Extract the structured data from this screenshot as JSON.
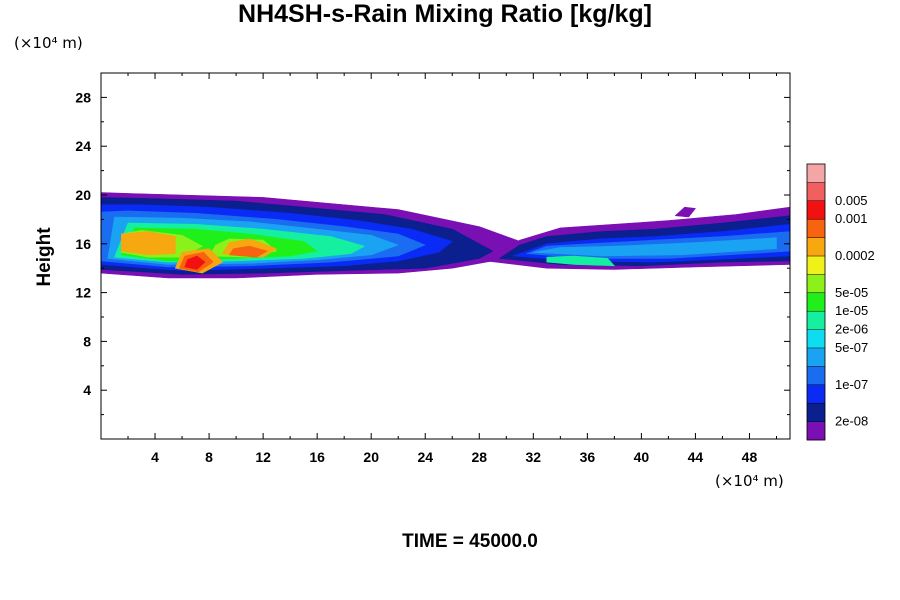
{
  "chart_data": {
    "type": "heatmap",
    "title": "NH4SH-s-Rain Mixing Ratio [kg/kg]",
    "xlabel": "",
    "ylabel": "Height",
    "x_unit_label": "(×10⁴ m)",
    "y_unit_label": "(×10⁴ m)",
    "footer": "TIME = 45000.0",
    "xlim": [
      0,
      51
    ],
    "ylim": [
      0,
      30
    ],
    "xticks": [
      4,
      8,
      12,
      16,
      20,
      24,
      28,
      32,
      36,
      40,
      44,
      48
    ],
    "yticks": [
      4,
      8,
      12,
      16,
      20,
      24,
      28
    ],
    "xtick_labels": [
      "4",
      "8",
      "12",
      "16",
      "20",
      "24",
      "28",
      "32",
      "36",
      "40",
      "44",
      "48"
    ],
    "ytick_labels": [
      "4",
      "8",
      "12",
      "16",
      "20",
      "24",
      "28"
    ],
    "colorbar": {
      "colors": [
        "#7a0fb4",
        "#0b1f8f",
        "#0a2bf5",
        "#1a6cf0",
        "#1aa3f2",
        "#0fdcf0",
        "#15f0a0",
        "#1ff01a",
        "#8cf01a",
        "#f0f01a",
        "#f7a70f",
        "#f7630f",
        "#f31010",
        "#f06060",
        "#f4a6a6"
      ],
      "labels": [
        "2e-08",
        "1e-07",
        "5e-07",
        "2e-06",
        "1e-05",
        "5e-05",
        "0.0002",
        "0.001",
        "0.005"
      ],
      "label_slots": [
        1,
        3,
        5,
        6,
        7,
        8,
        10,
        12,
        13
      ]
    },
    "regions": [
      {
        "level": 0,
        "pts": [
          [
            0,
            13.6
          ],
          [
            5,
            13.2
          ],
          [
            10,
            13.2
          ],
          [
            16,
            13.5
          ],
          [
            22,
            13.6
          ],
          [
            26,
            14.0
          ],
          [
            29,
            14.6
          ],
          [
            30.5,
            15.4
          ],
          [
            32,
            15.8
          ],
          [
            28,
            17.4
          ],
          [
            22,
            18.8
          ],
          [
            17,
            19.3
          ],
          [
            12,
            19.8
          ],
          [
            6,
            20.0
          ],
          [
            0,
            20.2
          ]
        ]
      },
      {
        "level": 0,
        "pts": [
          [
            28.5,
            14.6
          ],
          [
            33,
            14.0
          ],
          [
            38,
            13.9
          ],
          [
            44,
            14.1
          ],
          [
            51,
            14.3
          ],
          [
            51,
            19.0
          ],
          [
            47,
            18.4
          ],
          [
            42,
            17.9
          ],
          [
            38,
            17.6
          ],
          [
            34,
            17.3
          ],
          [
            31,
            16.3
          ]
        ]
      },
      {
        "level": 0,
        "pts": [
          [
            42.5,
            18.3
          ],
          [
            43.5,
            18.2
          ],
          [
            44,
            18.9
          ],
          [
            43.2,
            19.0
          ]
        ]
      },
      {
        "level": 1,
        "pts": [
          [
            0,
            13.9
          ],
          [
            6,
            13.5
          ],
          [
            12,
            13.6
          ],
          [
            18,
            13.8
          ],
          [
            24,
            14.0
          ],
          [
            28,
            14.8
          ],
          [
            29,
            15.4
          ],
          [
            26,
            17.2
          ],
          [
            21,
            18.4
          ],
          [
            16,
            18.9
          ],
          [
            10,
            19.5
          ],
          [
            4,
            19.7
          ],
          [
            0,
            19.8
          ]
        ]
      },
      {
        "level": 1,
        "pts": [
          [
            29.5,
            14.8
          ],
          [
            34,
            14.3
          ],
          [
            40,
            14.2
          ],
          [
            46,
            14.5
          ],
          [
            51,
            14.6
          ],
          [
            51,
            18.3
          ],
          [
            46,
            17.7
          ],
          [
            41,
            17.2
          ],
          [
            37,
            17.0
          ],
          [
            33,
            16.6
          ],
          [
            31,
            15.9
          ]
        ]
      },
      {
        "level": 2,
        "pts": [
          [
            0,
            14.3
          ],
          [
            6,
            13.8
          ],
          [
            12,
            14.0
          ],
          [
            18,
            14.2
          ],
          [
            22,
            14.6
          ],
          [
            25,
            15.3
          ],
          [
            26,
            16.2
          ],
          [
            23,
            17.2
          ],
          [
            19,
            17.9
          ],
          [
            14,
            18.5
          ],
          [
            8,
            19.0
          ],
          [
            3,
            19.2
          ],
          [
            0,
            19.2
          ]
        ]
      },
      {
        "level": 2,
        "pts": [
          [
            30.5,
            15.0
          ],
          [
            35,
            14.6
          ],
          [
            41,
            14.5
          ],
          [
            47,
            14.8
          ],
          [
            51,
            15.0
          ],
          [
            51,
            17.6
          ],
          [
            46,
            17.0
          ],
          [
            41,
            16.6
          ],
          [
            37,
            16.4
          ],
          [
            33,
            16.0
          ]
        ]
      },
      {
        "level": 3,
        "pts": [
          [
            0,
            14.6
          ],
          [
            5,
            14.1
          ],
          [
            11,
            14.2
          ],
          [
            17,
            14.5
          ],
          [
            22,
            15.0
          ],
          [
            24,
            15.9
          ],
          [
            22,
            16.8
          ],
          [
            18,
            17.4
          ],
          [
            13,
            18.0
          ],
          [
            7,
            18.5
          ],
          [
            2,
            18.7
          ],
          [
            0,
            18.6
          ]
        ]
      },
      {
        "level": 3,
        "pts": [
          [
            31.5,
            15.2
          ],
          [
            36,
            14.8
          ],
          [
            42,
            14.8
          ],
          [
            48,
            15.2
          ],
          [
            51,
            15.4
          ],
          [
            51,
            17.0
          ],
          [
            46,
            16.6
          ],
          [
            41,
            16.3
          ],
          [
            36,
            16.0
          ],
          [
            33,
            15.8
          ]
        ]
      },
      {
        "level": 4,
        "pts": [
          [
            0.5,
            14.8
          ],
          [
            5,
            14.3
          ],
          [
            11,
            14.4
          ],
          [
            16,
            14.7
          ],
          [
            20,
            15.1
          ],
          [
            22,
            15.9
          ],
          [
            20,
            16.7
          ],
          [
            16,
            17.2
          ],
          [
            11,
            17.8
          ],
          [
            6,
            18.1
          ],
          [
            1,
            18.2
          ]
        ]
      },
      {
        "level": 4,
        "pts": [
          [
            32,
            15.3
          ],
          [
            37,
            15.0
          ],
          [
            43,
            15.1
          ],
          [
            50,
            15.6
          ],
          [
            50,
            16.5
          ],
          [
            44,
            16.1
          ],
          [
            38,
            15.8
          ],
          [
            34,
            15.7
          ]
        ]
      },
      {
        "level": 6,
        "pts": [
          [
            1,
            14.9
          ],
          [
            5,
            14.5
          ],
          [
            10,
            14.6
          ],
          [
            15,
            14.8
          ],
          [
            18.5,
            15.2
          ],
          [
            19.5,
            15.8
          ],
          [
            17,
            16.6
          ],
          [
            12,
            17.2
          ],
          [
            7,
            17.6
          ],
          [
            2,
            17.7
          ]
        ]
      },
      {
        "level": 6,
        "pts": [
          [
            33,
            14.5
          ],
          [
            35,
            14.3
          ],
          [
            38,
            14.2
          ],
          [
            37.5,
            14.8
          ],
          [
            35,
            15.0
          ],
          [
            33,
            14.9
          ]
        ]
      },
      {
        "level": 7,
        "pts": [
          [
            1.5,
            15.1
          ],
          [
            5,
            14.6
          ],
          [
            10,
            14.8
          ],
          [
            14,
            15.0
          ],
          [
            16,
            15.4
          ],
          [
            15,
            16.2
          ],
          [
            11,
            16.8
          ],
          [
            7,
            17.2
          ],
          [
            2.5,
            17.3
          ]
        ]
      },
      {
        "level": 8,
        "pts": [
          [
            1.5,
            15.3
          ],
          [
            3.5,
            14.9
          ],
          [
            6,
            14.9
          ],
          [
            7.5,
            15.8
          ],
          [
            6,
            16.7
          ],
          [
            3,
            17.1
          ],
          [
            1.5,
            16.8
          ]
        ]
      },
      {
        "level": 8,
        "pts": [
          [
            8,
            15.0
          ],
          [
            11,
            14.9
          ],
          [
            13,
            15.4
          ],
          [
            12,
            16.3
          ],
          [
            9.5,
            16.4
          ],
          [
            8.5,
            15.9
          ]
        ]
      },
      {
        "level": 10,
        "pts": [
          [
            1.5,
            15.4
          ],
          [
            3.5,
            15.1
          ],
          [
            5.5,
            15.2
          ],
          [
            5.5,
            16.6
          ],
          [
            3.5,
            17.0
          ],
          [
            1.5,
            16.8
          ]
        ]
      },
      {
        "level": 10,
        "pts": [
          [
            5.5,
            14.0
          ],
          [
            7.5,
            13.6
          ],
          [
            9,
            14.5
          ],
          [
            8,
            15.6
          ],
          [
            6,
            15.3
          ]
        ]
      },
      {
        "level": 10,
        "pts": [
          [
            9,
            15.2
          ],
          [
            12,
            14.9
          ],
          [
            13,
            15.6
          ],
          [
            11,
            16.4
          ],
          [
            9.5,
            16.1
          ]
        ]
      },
      {
        "level": 11,
        "pts": [
          [
            5.8,
            14.0
          ],
          [
            7.2,
            13.7
          ],
          [
            8.3,
            14.5
          ],
          [
            7.6,
            15.3
          ],
          [
            6.2,
            15.0
          ]
        ]
      },
      {
        "level": 11,
        "pts": [
          [
            9.5,
            15.1
          ],
          [
            11.5,
            14.9
          ],
          [
            12.3,
            15.4
          ],
          [
            11,
            15.8
          ],
          [
            9.8,
            15.6
          ]
        ]
      },
      {
        "level": 12,
        "pts": [
          [
            6.2,
            14.1
          ],
          [
            7.1,
            13.9
          ],
          [
            7.7,
            14.5
          ],
          [
            7.1,
            15.0
          ],
          [
            6.4,
            14.7
          ]
        ]
      }
    ]
  }
}
